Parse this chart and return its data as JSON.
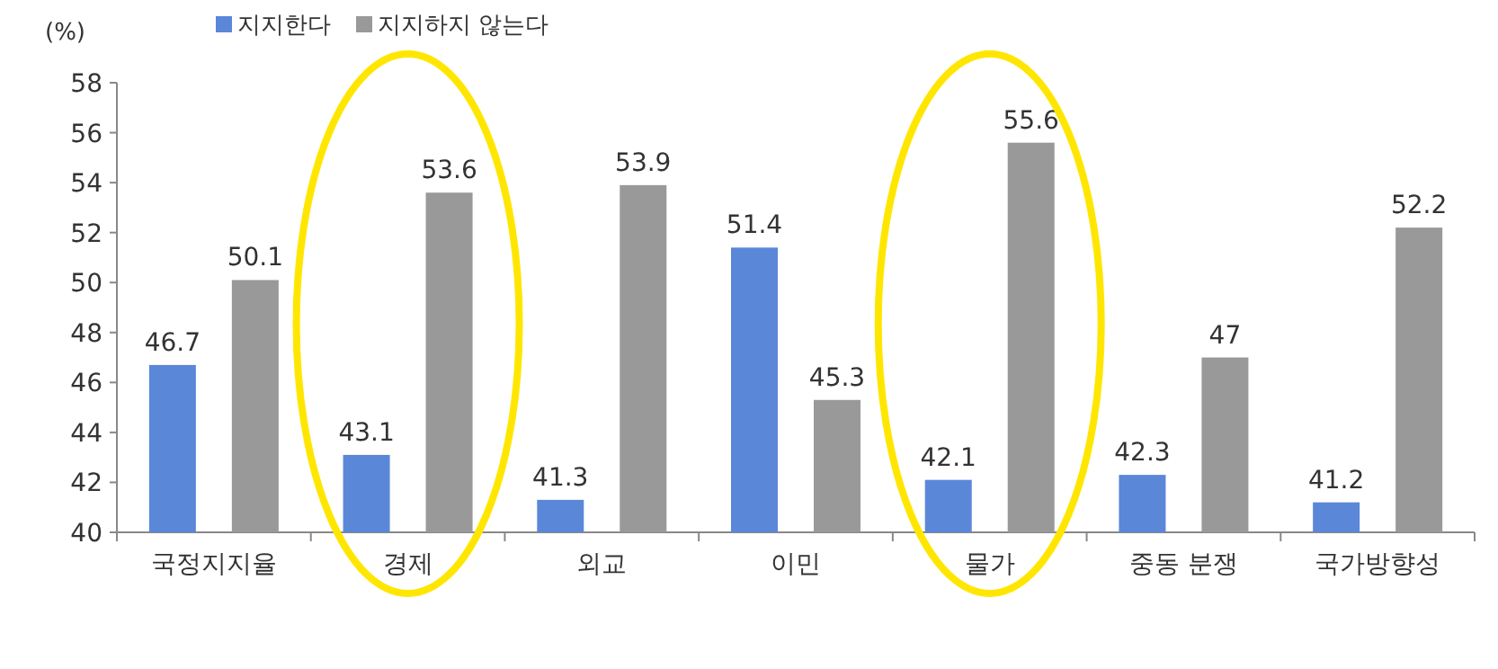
{
  "chart_data": {
    "type": "bar",
    "ylabel": "(%)",
    "categories": [
      "국정지지율",
      "경제",
      "외교",
      "이민",
      "물가",
      "중동 분쟁",
      "국가방향성"
    ],
    "series": [
      {
        "name": "지지한다",
        "color": "#5b87d8",
        "values": [
          46.7,
          43.1,
          41.3,
          51.4,
          42.1,
          42.3,
          41.2
        ]
      },
      {
        "name": "지지하지 않는다",
        "color": "#999999",
        "values": [
          50.1,
          53.6,
          53.9,
          45.3,
          55.6,
          47,
          52.2
        ]
      }
    ],
    "ylim": [
      40,
      58
    ],
    "yticks": [
      40,
      42,
      44,
      46,
      48,
      50,
      52,
      54,
      56,
      58
    ],
    "data_labels": true,
    "legend": "top left",
    "grid": false
  }
}
